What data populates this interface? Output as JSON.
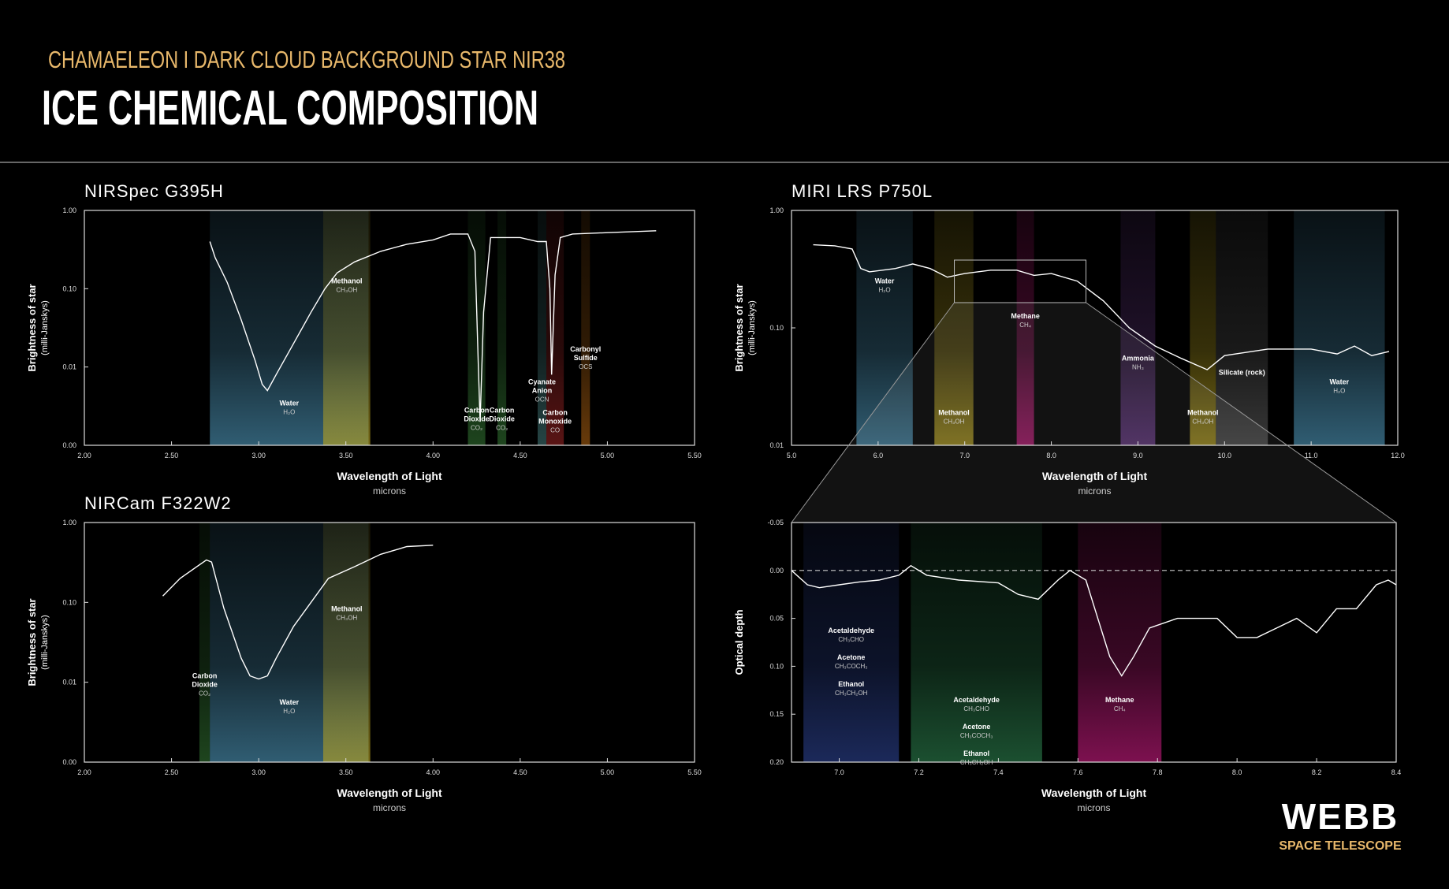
{
  "header": {
    "subtitle": "CHAMAELEON I DARK CLOUD BACKGROUND STAR NIR38",
    "title": "ICE CHEMICAL COMPOSITION"
  },
  "logo": {
    "name": "WEBB",
    "tagline": "SPACE TELESCOPE"
  },
  "chart_data": [
    {
      "type": "line",
      "title": "NIRSpec G395H",
      "x_label": "Wavelength of Light",
      "x_unit": "microns",
      "y_label": "Brightness of star",
      "y_unit": "(milli-Janskys)",
      "log_y": true,
      "color": "#ffffff",
      "xlim": [
        2.0,
        5.5
      ],
      "xticks": [
        {
          "value": 2.0,
          "label": "2.00"
        },
        {
          "value": 2.5,
          "label": "2.50"
        },
        {
          "value": 3.0,
          "label": "3.00"
        },
        {
          "value": 3.5,
          "label": "3.50"
        },
        {
          "value": 4.0,
          "label": "4.00"
        },
        {
          "value": 4.5,
          "label": "4.50"
        },
        {
          "value": 5.0,
          "label": "5.00"
        },
        {
          "value": 5.5,
          "label": "5.50"
        }
      ],
      "ylim": [
        0.001,
        1
      ],
      "yticks": [
        {
          "value": 0.001,
          "label": "0.00"
        },
        0.01,
        {
          "value": 0.1,
          "label": "0.10"
        },
        {
          "value": 1,
          "label": "1.00"
        }
      ],
      "x": [
        2.72,
        2.75,
        2.82,
        2.9,
        2.98,
        3.02,
        3.05,
        3.1,
        3.2,
        3.3,
        3.38,
        3.45,
        3.55,
        3.7,
        3.85,
        4.0,
        4.1,
        4.2,
        4.24,
        4.26,
        4.27,
        4.29,
        4.33,
        4.4,
        4.5,
        4.6,
        4.65,
        4.67,
        4.68,
        4.7,
        4.73,
        4.8,
        5.0,
        5.28
      ],
      "values": [
        0.4,
        0.25,
        0.12,
        0.04,
        0.012,
        0.006,
        0.005,
        0.008,
        0.02,
        0.05,
        0.1,
        0.16,
        0.22,
        0.3,
        0.37,
        0.42,
        0.5,
        0.5,
        0.3,
        0.01,
        0.002,
        0.05,
        0.45,
        0.45,
        0.45,
        0.4,
        0.4,
        0.1,
        0.008,
        0.15,
        0.45,
        0.5,
        0.52,
        0.55
      ],
      "bands": [
        {
          "range": [
            2.72,
            3.63
          ],
          "color": "#4a8fb0",
          "labels": [
            {
              "name": [
                "Water"
              ],
              "formula": "H₂O"
            }
          ]
        },
        {
          "range": [
            3.37,
            3.64
          ],
          "color": "#b5a020",
          "labels": [
            {
              "name": [
                "Methanol"
              ],
              "formula": "CH₃OH"
            }
          ]
        },
        {
          "range": [
            4.2,
            4.3
          ],
          "color": "#2e6a2e",
          "labels": [
            {
              "name": [
                "Carbon",
                "Dioxide"
              ],
              "formula": "CO₂"
            }
          ]
        },
        {
          "range": [
            4.37,
            4.42
          ],
          "color": "#2e6a2e",
          "labels": [
            {
              "name": [
                "Carbon",
                "Dioxide"
              ],
              "formula": "CO₂"
            }
          ]
        },
        {
          "range": [
            4.6,
            4.65
          ],
          "color": "#3a6a6a",
          "labels": [
            {
              "name": [
                "Cyanate",
                "Anion"
              ],
              "formula": "OCN"
            }
          ]
        },
        {
          "range": [
            4.65,
            4.75
          ],
          "color": "#8a2020",
          "labels": [
            {
              "name": [
                "Carbon",
                "Monoxide"
              ],
              "formula": "CO"
            }
          ]
        },
        {
          "range": [
            4.85,
            4.9
          ],
          "color": "#a05a10",
          "labels": [
            {
              "name": [
                "Carbonyl",
                "Sulfide"
              ],
              "formula": "OCS"
            }
          ]
        }
      ]
    },
    {
      "type": "line",
      "title": "NIRCam F322W2",
      "x_label": "Wavelength of Light",
      "x_unit": "microns",
      "y_label": "Brightness of star",
      "y_unit": "(milli-Janskys)",
      "log_y": true,
      "color": "#ffffff",
      "xlim": [
        2.0,
        5.5
      ],
      "xticks": [
        {
          "value": 2.0,
          "label": "2.00"
        },
        {
          "value": 2.5,
          "label": "2.50"
        },
        {
          "value": 3.0,
          "label": "3.00"
        },
        {
          "value": 3.5,
          "label": "3.50"
        },
        {
          "value": 4.0,
          "label": "4.00"
        },
        {
          "value": 4.5,
          "label": "4.50"
        },
        {
          "value": 5.0,
          "label": "5.00"
        },
        {
          "value": 5.5,
          "label": "5.50"
        }
      ],
      "ylim": [
        0.001,
        1
      ],
      "yticks": [
        {
          "value": 0.001,
          "label": "0.00"
        },
        0.01,
        {
          "value": 0.1,
          "label": "0.10"
        },
        {
          "value": 1,
          "label": "1.00"
        }
      ],
      "x": [
        2.45,
        2.55,
        2.7,
        2.73,
        2.8,
        2.9,
        2.95,
        3.0,
        3.05,
        3.1,
        3.2,
        3.3,
        3.4,
        3.55,
        3.7,
        3.85,
        4.0
      ],
      "values": [
        0.12,
        0.2,
        0.34,
        0.32,
        0.085,
        0.02,
        0.012,
        0.011,
        0.012,
        0.02,
        0.05,
        0.1,
        0.2,
        0.28,
        0.4,
        0.5,
        0.52
      ],
      "bands": [
        {
          "range": [
            2.66,
            2.72
          ],
          "color": "#2e6a2e",
          "labels": [
            {
              "name": [
                "Carbon",
                "Dioxide"
              ],
              "formula": "CO₂"
            }
          ]
        },
        {
          "range": [
            2.72,
            3.63
          ],
          "color": "#4a8fb0",
          "labels": [
            {
              "name": [
                "Water"
              ],
              "formula": "H₂O"
            }
          ]
        },
        {
          "range": [
            3.37,
            3.64
          ],
          "color": "#b5a020",
          "labels": [
            {
              "name": [
                "Methanol"
              ],
              "formula": "CH₃OH"
            }
          ]
        }
      ]
    },
    {
      "type": "line",
      "title": "MIRI LRS P750L",
      "x_label": "Wavelength of Light",
      "x_unit": "microns",
      "y_label": "Brightness of star",
      "y_unit": "(milli-Janskys)",
      "log_y": true,
      "color": "#ffffff",
      "xlim": [
        5.0,
        12.0
      ],
      "xticks": [
        {
          "value": 5,
          "label": "5.0"
        },
        {
          "value": 6,
          "label": "6.0"
        },
        {
          "value": 7,
          "label": "7.0"
        },
        {
          "value": 8,
          "label": "8.0"
        },
        {
          "value": 9,
          "label": "9.0"
        },
        {
          "value": 10,
          "label": "10.0"
        },
        {
          "value": 11,
          "label": "11.0"
        },
        {
          "value": 12,
          "label": "12.0"
        }
      ],
      "ylim": [
        0.01,
        1
      ],
      "yticks": [
        0.01,
        {
          "value": 0.1,
          "label": "0.10"
        },
        {
          "value": 1,
          "label": "1.00"
        }
      ],
      "x": [
        5.25,
        5.5,
        5.7,
        5.8,
        5.9,
        6.2,
        6.4,
        6.6,
        6.8,
        7.0,
        7.3,
        7.6,
        7.8,
        8.0,
        8.3,
        8.6,
        8.9,
        9.2,
        9.5,
        9.8,
        10.0,
        10.5,
        11.0,
        11.3,
        11.5,
        11.7,
        11.9
      ],
      "values": [
        0.51,
        0.5,
        0.47,
        0.32,
        0.3,
        0.32,
        0.35,
        0.32,
        0.27,
        0.29,
        0.31,
        0.31,
        0.28,
        0.29,
        0.25,
        0.17,
        0.1,
        0.07,
        0.055,
        0.044,
        0.058,
        0.066,
        0.066,
        0.06,
        0.07,
        0.058,
        0.063
      ],
      "bands": [
        {
          "range": [
            5.75,
            6.4
          ],
          "color": "#4a8fb0",
          "labels": [
            {
              "name": [
                "Water"
              ],
              "formula": "H₂O"
            }
          ]
        },
        {
          "range": [
            6.65,
            7.1
          ],
          "color": "#b5a020",
          "labels": [
            {
              "name": [
                "Methanol"
              ],
              "formula": "CH₃OH"
            }
          ]
        },
        {
          "range": [
            7.6,
            7.8
          ],
          "color": "#c01a7a",
          "labels": [
            {
              "name": [
                "Methane"
              ],
              "formula": "CH₄"
            }
          ]
        },
        {
          "range": [
            8.8,
            9.2
          ],
          "color": "#6a3a8a",
          "labels": [
            {
              "name": [
                "Ammonia"
              ],
              "formula": "NH₃"
            }
          ]
        },
        {
          "range": [
            9.6,
            9.9
          ],
          "color": "#b5a020",
          "labels": [
            {
              "name": [
                "Methanol"
              ],
              "formula": "CH₃OH"
            }
          ]
        },
        {
          "range": [
            9.9,
            10.5
          ],
          "color": "#555555",
          "labels": [
            {
              "name": [
                "Silicate (rock)"
              ]
            }
          ]
        },
        {
          "range": [
            10.8,
            11.85
          ],
          "color": "#4a8fb0",
          "labels": [
            {
              "name": [
                "Water"
              ],
              "formula": "H₂O"
            }
          ]
        }
      ]
    },
    {
      "type": "line",
      "x_label": "Wavelength of Light",
      "x_unit": "microns",
      "y_label": "Optical depth",
      "y_reversed": true,
      "zero_line": true,
      "color": "#ffffff",
      "xlim": [
        6.88,
        8.4
      ],
      "xticks": [
        {
          "value": 7,
          "label": "7.0"
        },
        {
          "value": 7.2,
          "label": "7.2"
        },
        {
          "value": 7.4,
          "label": "7.4"
        },
        {
          "value": 7.6,
          "label": "7.6"
        },
        {
          "value": 7.8,
          "label": "7.8"
        },
        {
          "value": 8,
          "label": "8.0"
        },
        {
          "value": 8.2,
          "label": "8.2"
        },
        {
          "value": 8.4,
          "label": "8.4"
        }
      ],
      "ylim": [
        -0.05,
        0.2
      ],
      "yticks": [
        -0.05,
        {
          "value": 0,
          "label": "0.00"
        },
        0.05,
        {
          "value": 0.1,
          "label": "0.10"
        },
        0.15,
        {
          "value": 0.2,
          "label": "0.20"
        }
      ],
      "x": [
        6.88,
        6.92,
        6.95,
        7.0,
        7.05,
        7.1,
        7.15,
        7.18,
        7.22,
        7.3,
        7.4,
        7.45,
        7.5,
        7.55,
        7.58,
        7.62,
        7.65,
        7.68,
        7.71,
        7.74,
        7.78,
        7.85,
        7.95,
        8.0,
        8.05,
        8.1,
        8.15,
        8.2,
        8.25,
        8.3,
        8.35,
        8.38,
        8.4
      ],
      "values": [
        0.0,
        0.015,
        0.018,
        0.015,
        0.012,
        0.01,
        0.005,
        -0.005,
        0.005,
        0.01,
        0.013,
        0.025,
        0.03,
        0.01,
        0.0,
        0.01,
        0.05,
        0.09,
        0.11,
        0.09,
        0.06,
        0.05,
        0.05,
        0.07,
        0.07,
        0.06,
        0.05,
        0.065,
        0.04,
        0.04,
        0.015,
        0.01,
        0.015
      ],
      "bands": [
        {
          "range": [
            6.91,
            7.15
          ],
          "color": "#2a3f8a",
          "labels": [
            {
              "name": [
                "Acetaldehyde"
              ],
              "formula": "CH₃CHO"
            },
            {
              "name": [
                "Acetone"
              ],
              "formula": "CH₃COCH₃"
            },
            {
              "name": [
                "Ethanol"
              ],
              "formula": "CH₃CH₂OH"
            }
          ]
        },
        {
          "range": [
            7.18,
            7.51
          ],
          "color": "#2a7a4a",
          "labels": [
            {
              "name": [
                "Acetaldehyde"
              ],
              "formula": "CH₃CHO"
            },
            {
              "name": [
                "Acetone"
              ],
              "formula": "CH₃COCH₃"
            },
            {
              "name": [
                "Ethanol"
              ],
              "formula": "CH₃CH₂OH"
            }
          ]
        },
        {
          "range": [
            7.6,
            7.81
          ],
          "color": "#c01a7a",
          "labels": [
            {
              "name": [
                "Methane"
              ],
              "formula": "CH₄"
            }
          ]
        }
      ]
    }
  ]
}
